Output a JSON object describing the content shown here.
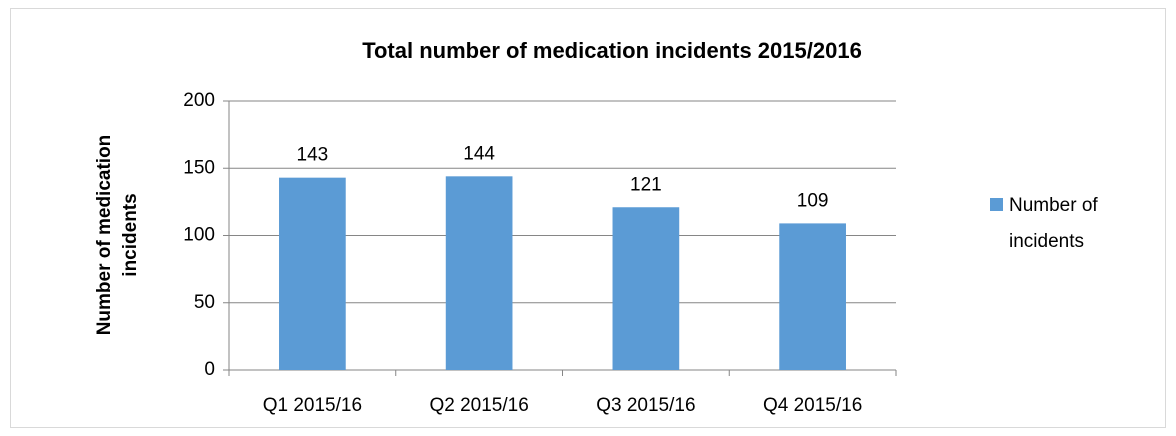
{
  "chart_data": {
    "type": "bar",
    "title": "Total number of medication incidents 2015/2016",
    "y_label": "Number of medication incidents",
    "categories": [
      "Q1 2015/16",
      "Q2 2015/16",
      "Q3 2015/16",
      "Q4 2015/16"
    ],
    "series": [
      {
        "name": "Number of incidents",
        "color": "#5b9bd5",
        "values": [
          143,
          144,
          121,
          109
        ]
      }
    ],
    "ylim": [
      0,
      200
    ],
    "yticks": [
      0,
      50,
      100,
      150,
      200
    ],
    "grid": true,
    "legend": "right"
  }
}
